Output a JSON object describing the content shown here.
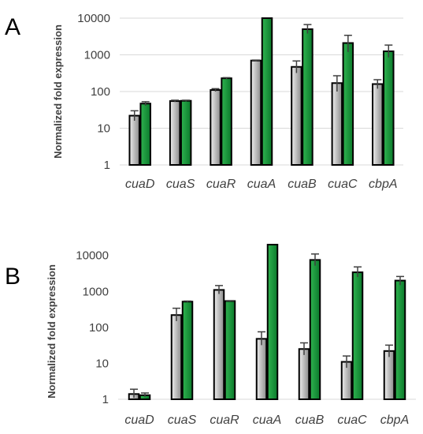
{
  "colors": {
    "gray_light": "#ededed",
    "gray_dark": "#8c8c8c",
    "green_light": "#2fb34f",
    "green_dark": "#0b7a2c",
    "grid": "#d9d9d9",
    "text": "#404040"
  },
  "chart_data": [
    {
      "panel_label": "A",
      "type": "bar",
      "title": "",
      "xlabel": "",
      "ylabel": "Normalized fold expression",
      "yscale": "log",
      "ylim": [
        1,
        10000
      ],
      "yticks": [
        "1",
        "10",
        "100",
        "1000",
        "10000"
      ],
      "grid": true,
      "categories": [
        "cuaD",
        "cuaS",
        "cuaR",
        "cuaA",
        "cuaB",
        "cuaC",
        "cbpA"
      ],
      "series": [
        {
          "color": "gray",
          "values": [
            22,
            55,
            110,
            700,
            470,
            170,
            160
          ],
          "err_upper": [
            30,
            58,
            120,
            720,
            680,
            270,
            210
          ],
          "err_lower": [
            16,
            52,
            100,
            680,
            320,
            100,
            120
          ]
        },
        {
          "color": "green",
          "values": [
            47,
            56,
            230,
            10000,
            5000,
            2100,
            1250
          ],
          "err_upper": [
            53,
            58,
            240,
            10000,
            6700,
            3400,
            1850
          ],
          "err_lower": [
            41,
            54,
            220,
            10000,
            3800,
            1200,
            850
          ]
        }
      ]
    },
    {
      "panel_label": "B",
      "type": "bar",
      "title": "",
      "xlabel": "",
      "ylabel": "Normalized fold expression",
      "yscale": "log",
      "ylim": [
        1,
        20000
      ],
      "yticks": [
        "1",
        "10",
        "100",
        "1000",
        "10000"
      ],
      "grid": false,
      "categories": [
        "cuaD",
        "cuaS",
        "cuaR",
        "cuaA",
        "cuaB",
        "cuaC",
        "cbpA"
      ],
      "series": [
        {
          "color": "gray",
          "values": [
            1.4,
            220,
            1100,
            48,
            25,
            11,
            22
          ],
          "err_upper": [
            1.9,
            340,
            1450,
            75,
            37,
            16,
            32
          ],
          "err_lower": [
            1.1,
            150,
            850,
            32,
            17,
            7.5,
            15
          ]
        },
        {
          "color": "green",
          "values": [
            1.3,
            520,
            540,
            20000,
            7500,
            3400,
            2000
          ],
          "err_upper": [
            1.5,
            540,
            555,
            20000,
            11000,
            4800,
            2600
          ],
          "err_lower": [
            1.15,
            500,
            525,
            20000,
            5200,
            2500,
            1500
          ]
        }
      ]
    }
  ]
}
